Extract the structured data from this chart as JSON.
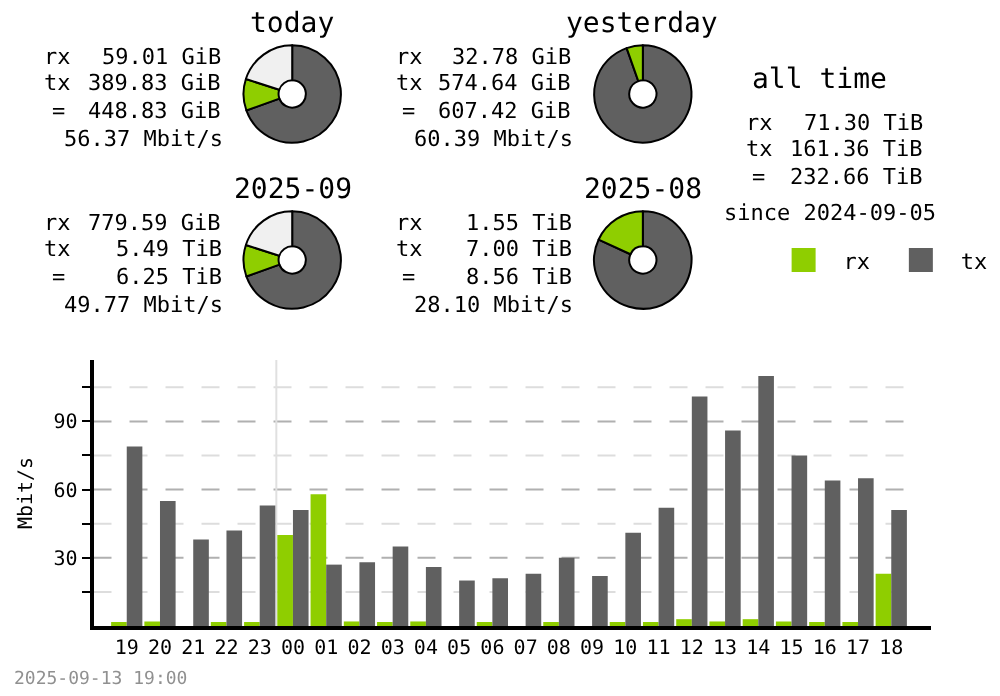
{
  "chart_data": [
    {
      "type": "donut",
      "title": "today",
      "categories": [
        null,
        null,
        null
      ],
      "values": [
        69.5,
        10.5,
        20.0
      ],
      "colors": [
        "#606060",
        "#8fce00",
        "#f0f0f0"
      ],
      "annotations": [
        "rx",
        "59.01 GiB",
        "tx",
        "389.83 GiB",
        "=",
        "448.83 GiB",
        "56.37 Mbit/s"
      ]
    },
    {
      "type": "donut",
      "title": "yesterday",
      "categories": [
        null,
        null
      ],
      "values": [
        94.6,
        5.4
      ],
      "colors": [
        "#606060",
        "#8fce00"
      ],
      "annotations": [
        "rx",
        "32.78 GiB",
        "tx",
        "574.64 GiB",
        "=",
        "607.42 GiB",
        "60.39 Mbit/s"
      ]
    },
    {
      "type": "other",
      "title": "all time",
      "annotations": [
        "rx",
        "71.30 TiB",
        "tx",
        "161.36 TiB",
        "=",
        "232.66 TiB",
        "since 2024-09-05"
      ]
    },
    {
      "type": "donut",
      "title": "2025-09",
      "categories": [
        null,
        null,
        null
      ],
      "values": [
        69.5,
        10.5,
        20.0
      ],
      "colors": [
        "#606060",
        "#8fce00",
        "#f0f0f0"
      ],
      "annotations": [
        "rx",
        "779.59 GiB",
        "tx",
        "5.49 TiB",
        "=",
        "6.25 TiB",
        "49.77 Mbit/s"
      ]
    },
    {
      "type": "donut",
      "title": "2025-08",
      "categories": [
        null,
        null
      ],
      "values": [
        81.9,
        18.1
      ],
      "colors": [
        "#606060",
        "#8fce00"
      ],
      "annotations": [
        "rx",
        "1.55 TiB",
        "tx",
        "7.00 TiB",
        "=",
        "8.56 TiB",
        "28.10 Mbit/s"
      ]
    },
    {
      "type": "bar",
      "ylabel": "Mbit/s",
      "categories": [
        "19",
        "20",
        "21",
        "22",
        "23",
        "00",
        "01",
        "02",
        "03",
        "04",
        "05",
        "06",
        "07",
        "08",
        "09",
        "10",
        "11",
        "12",
        "13",
        "14",
        "15",
        "16",
        "17",
        "18"
      ],
      "series": [
        {
          "name": "rx",
          "color": "#8fce00",
          "values": [
            1,
            2,
            0,
            1,
            1,
            40,
            58,
            2,
            1,
            2,
            0,
            1,
            0,
            1,
            0,
            1,
            1,
            3,
            2,
            3,
            2,
            1,
            1,
            23
          ]
        },
        {
          "name": "tx",
          "color": "#606060",
          "values": [
            79,
            55,
            38,
            42,
            53,
            51,
            27,
            28,
            35,
            26,
            20,
            21,
            23,
            30,
            22,
            41,
            52,
            101,
            86,
            110,
            75,
            64,
            65,
            51
          ]
        }
      ],
      "ylim": [
        0,
        117
      ],
      "yticks": [
        {
          "value": 15,
          "label": null
        },
        30,
        {
          "value": 45,
          "label": null
        },
        60,
        {
          "value": 75,
          "label": null
        },
        90,
        {
          "value": 105,
          "label": null
        }
      ],
      "grid": "y",
      "legend": "top right",
      "ref_lines": [
        {
          "axis": "x",
          "value": "00",
          "color": "#e0e0e0"
        }
      ],
      "annotations": [
        "2025-09-13 19:00"
      ]
    }
  ]
}
